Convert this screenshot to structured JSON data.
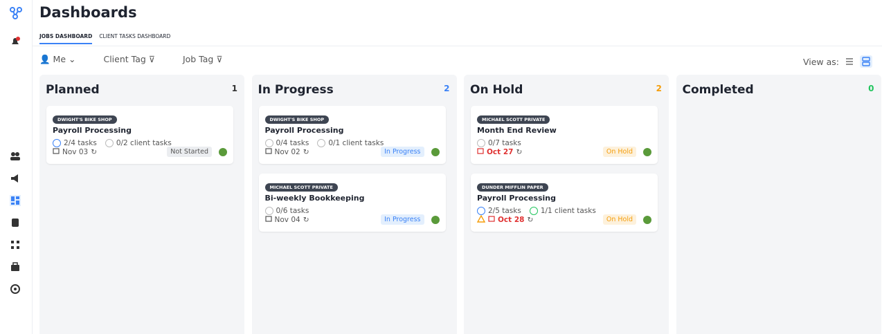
{
  "header": {
    "title": "Dashboards"
  },
  "tabs": [
    "JOBS DASHBOARD",
    "CLIENT TASKS DASHBOARD"
  ],
  "filters": [
    "Me",
    "Client Tag",
    "Job Tag"
  ],
  "view_as": "View as:",
  "columns": [
    {
      "title": "Planned",
      "count": 1,
      "count_color": "#333333",
      "cards": [
        {
          "client": "DWIGHT'S BIKE SHOP",
          "title": "Payroll Processing",
          "tasks": "2/4 tasks",
          "tasks_icon_color": "#3b82f6",
          "client_tasks": "0/2 client tasks",
          "client_tasks_icon_color": "#bbbbbb",
          "date": "Nov 03",
          "date_color": "#555555",
          "status": "Not Started",
          "status_color": "#555555",
          "status_bg": "#ebedf0"
        }
      ]
    },
    {
      "title": "In Progress",
      "count": 2,
      "count_color": "#3b82f6",
      "cards": [
        {
          "client": "DWIGHT'S BIKE SHOP",
          "title": "Payroll Processing",
          "tasks": "0/4 tasks",
          "tasks_icon_color": "#bbbbbb",
          "client_tasks": "0/1 client tasks",
          "client_tasks_icon_color": "#bbbbbb",
          "date": "Nov 02",
          "date_color": "#555555",
          "status": "In Progress",
          "status_color": "#3b82f6",
          "status_bg": "#e3effd"
        },
        {
          "client": "MICHAEL SCOTT PRIVATE",
          "title": "Bi-weekly Bookkeeping",
          "tasks": "0/6 tasks",
          "tasks_icon_color": "#bbbbbb",
          "date": "Nov 04",
          "date_color": "#555555",
          "status": "In Progress",
          "status_color": "#3b82f6",
          "status_bg": "#e3effd"
        }
      ]
    },
    {
      "title": "On Hold",
      "count": 2,
      "count_color": "#f59e0b",
      "cards": [
        {
          "client": "MICHAEL SCOTT PRIVATE",
          "title": "Month End Review",
          "tasks": "0/7 tasks",
          "tasks_icon_color": "#bbbbbb",
          "date": "Oct 27",
          "date_color": "#e03131",
          "status": "On Hold",
          "status_color": "#f59e0b",
          "status_bg": "#fdf1dc"
        },
        {
          "client": "DUNDER MIFFLIN PAPER",
          "title": "Payroll Processing",
          "tasks": "2/5 tasks",
          "tasks_icon_color": "#3b82f6",
          "client_tasks": "1/1 client tasks",
          "client_tasks_icon_color": "#22c55e",
          "warning": true,
          "date": "Oct 28",
          "date_color": "#e03131",
          "status": "On Hold",
          "status_color": "#f59e0b",
          "status_bg": "#fdf1dc"
        }
      ]
    },
    {
      "title": "Completed",
      "count": 0,
      "count_color": "#22c55e",
      "cards": []
    }
  ]
}
